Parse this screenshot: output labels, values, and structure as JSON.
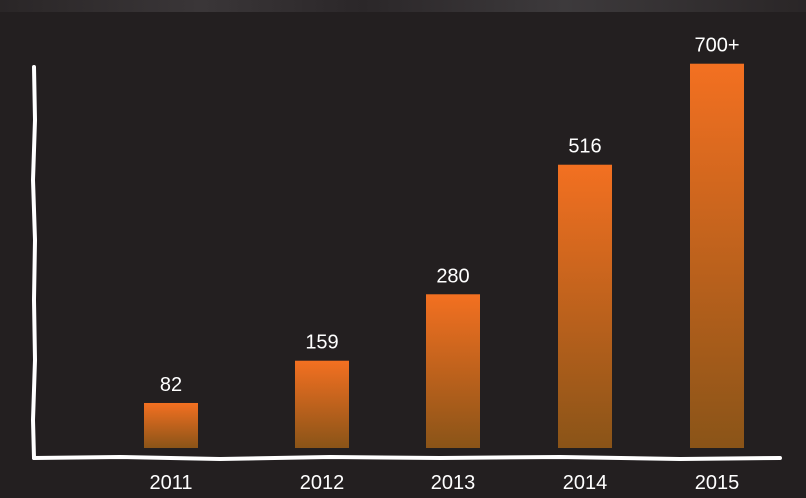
{
  "chart_data": {
    "type": "bar",
    "categories": [
      "2011",
      "2012",
      "2013",
      "2014",
      "2015"
    ],
    "values": [
      82,
      159,
      280,
      516,
      700
    ],
    "data_labels": [
      "82",
      "159",
      "280",
      "516",
      "700+"
    ],
    "title": "",
    "xlabel": "",
    "ylabel": "",
    "ylim": [
      0,
      800
    ],
    "grid": false,
    "legend": "none",
    "colors": {
      "background": "#231f20",
      "bar_top": "#f37021",
      "bar_bottom": "#8a5418",
      "axis": "#ffffff",
      "text": "#ffffff"
    }
  }
}
